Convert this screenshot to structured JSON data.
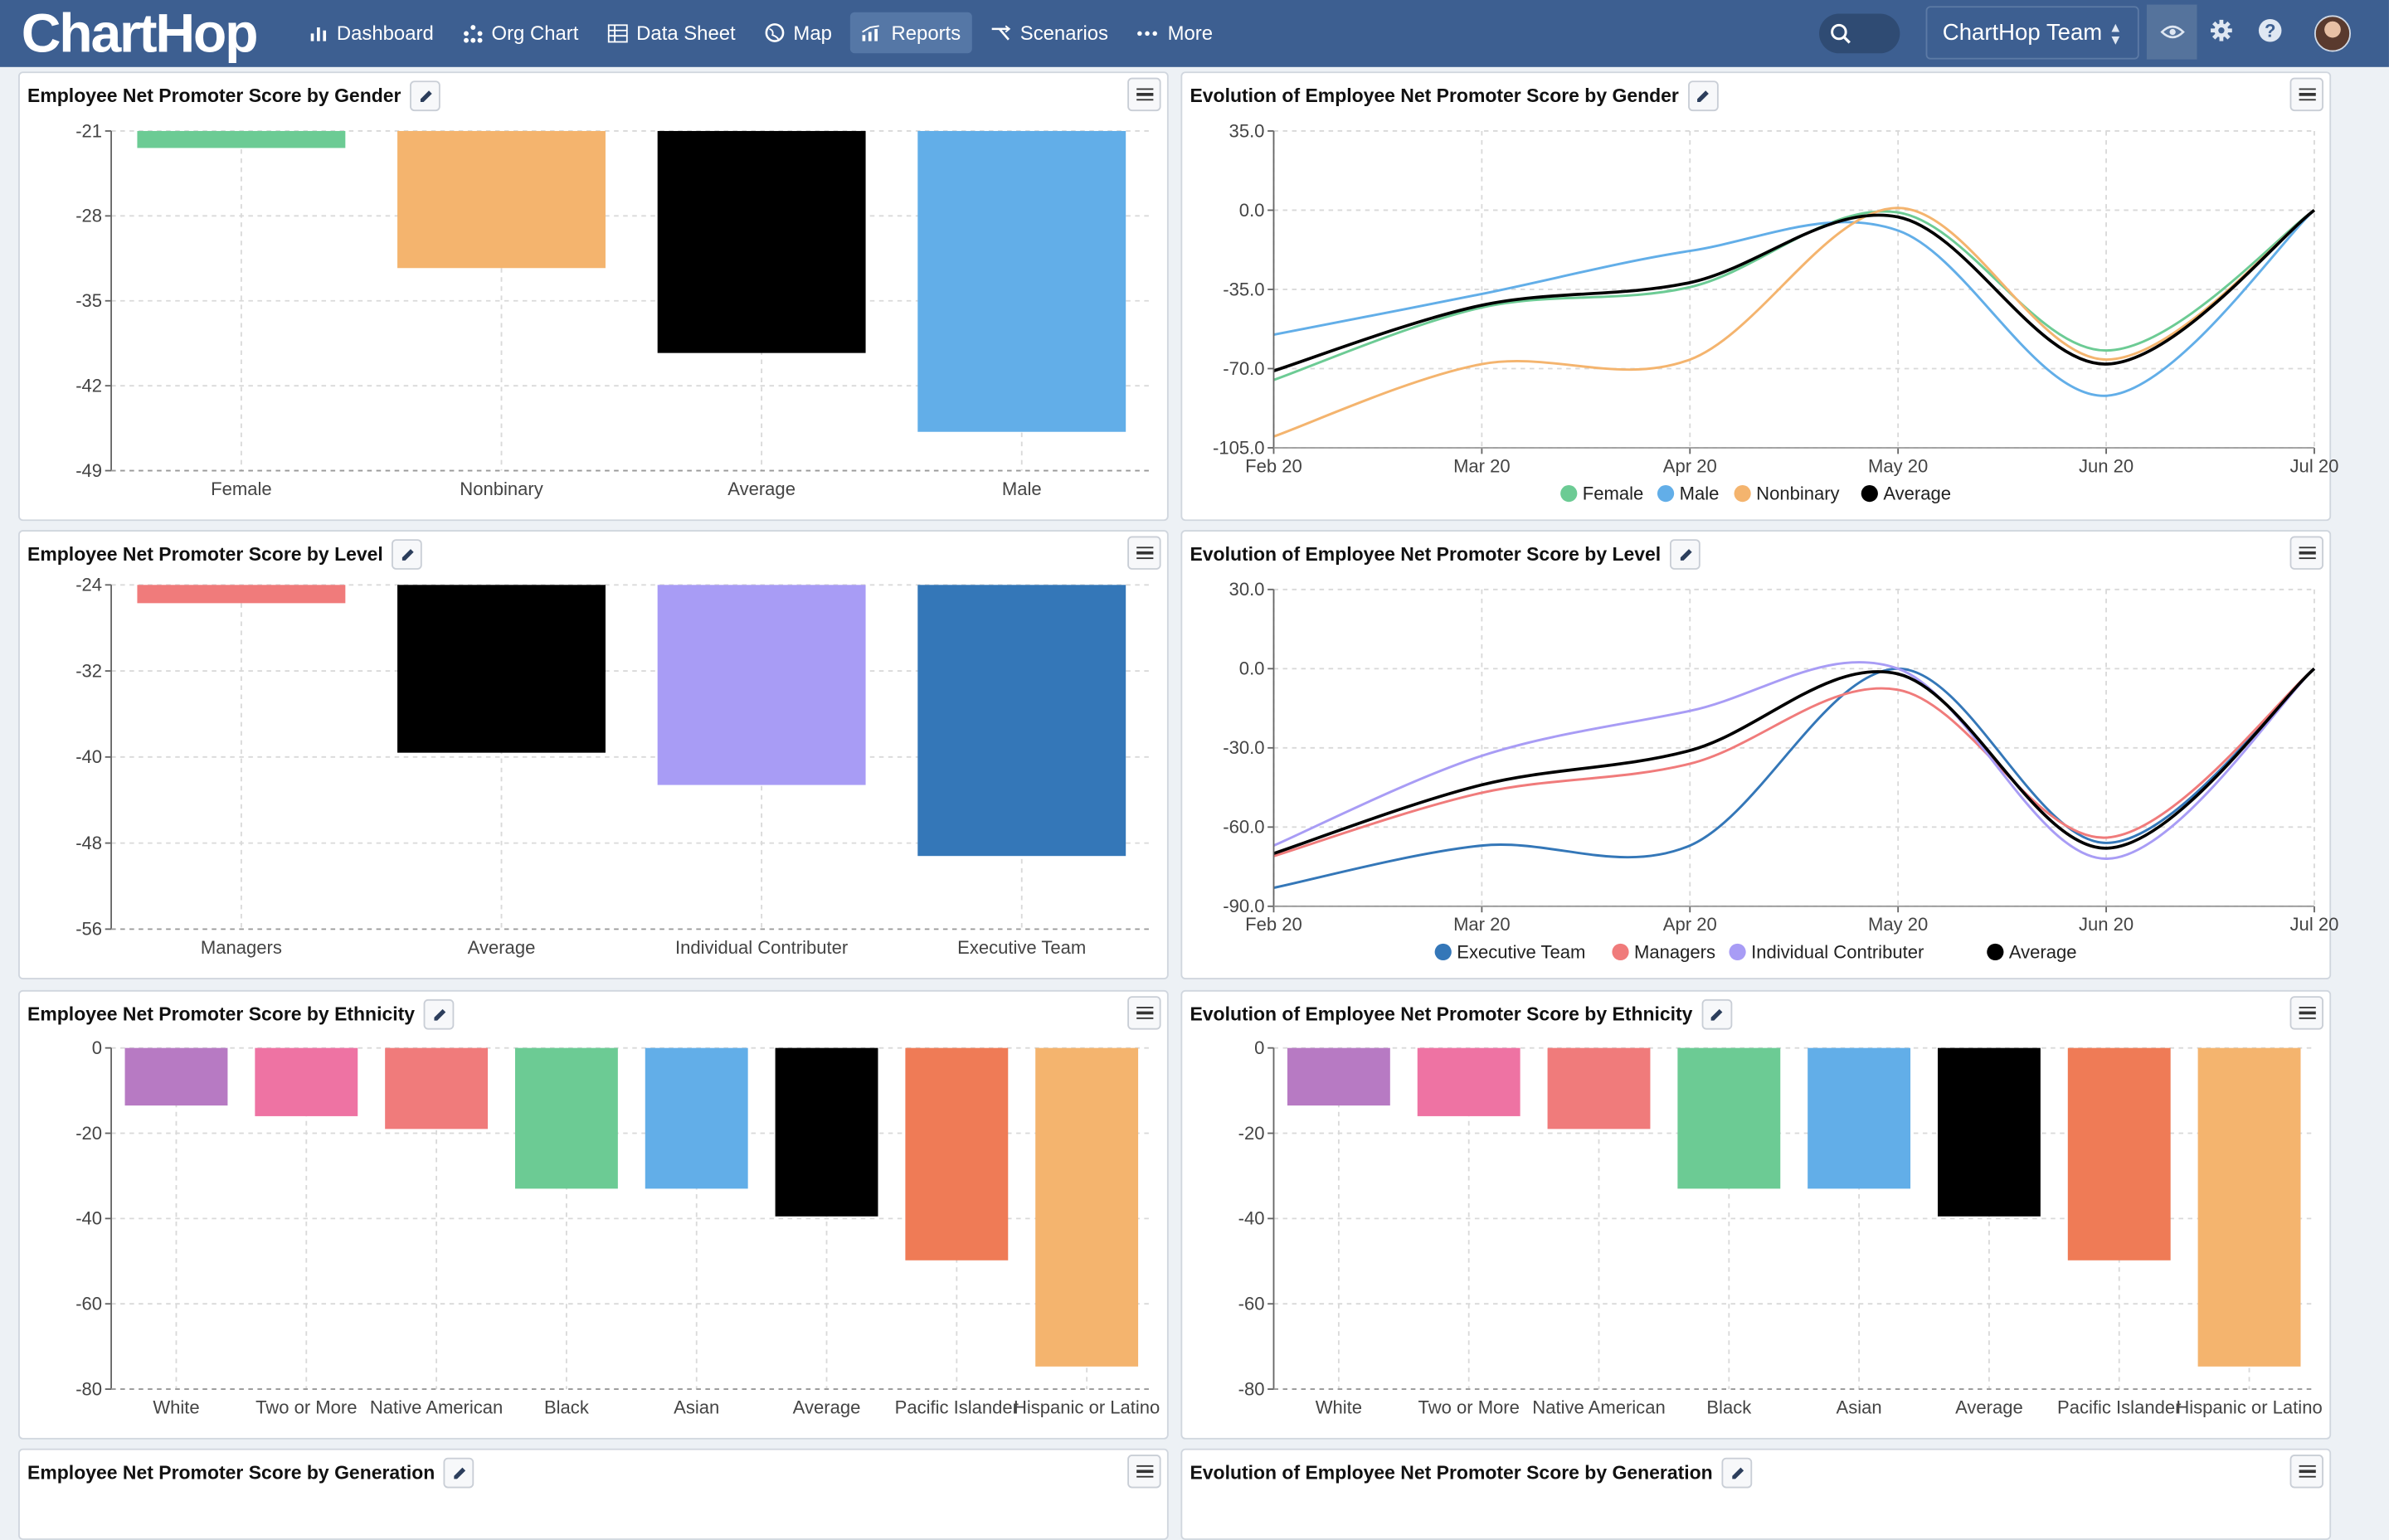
{
  "app": {
    "logo": "ChartHop",
    "nav": [
      {
        "label": "Dashboard",
        "icon": "bar-chart-icon"
      },
      {
        "label": "Org Chart",
        "icon": "org-chart-icon"
      },
      {
        "label": "Data Sheet",
        "icon": "table-icon"
      },
      {
        "label": "Map",
        "icon": "globe-icon"
      },
      {
        "label": "Reports",
        "icon": "reports-icon",
        "active": true
      },
      {
        "label": "Scenarios",
        "icon": "scenarios-icon"
      },
      {
        "label": "More",
        "icon": "ellipsis-icon"
      }
    ],
    "team_selector": "ChartHop Team",
    "colors": {
      "topbar": "#3d5f91",
      "active_nav": "#5577a6"
    }
  },
  "cards": [
    {
      "title": "Employee Net Promoter Score by Gender"
    },
    {
      "title": "Evolution of Employee Net Promoter Score by Gender"
    },
    {
      "title": "Employee Net Promoter Score by Level"
    },
    {
      "title": "Evolution of Employee Net Promoter Score by Level"
    },
    {
      "title": "Employee Net Promoter Score by Ethnicity"
    },
    {
      "title": "Evolution of Employee Net Promoter Score by Ethnicity"
    },
    {
      "title": "Employee Net Promoter Score by Generation"
    },
    {
      "title": "Evolution of Employee Net Promoter Score by Generation"
    }
  ],
  "chart_data": [
    {
      "type": "bar",
      "title": "Employee Net Promoter Score by Gender",
      "categories": [
        "Female",
        "Nonbinary",
        "Average",
        "Male"
      ],
      "values": [
        -22.4,
        -32.3,
        -39.3,
        -45.8
      ],
      "colors": [
        "#6ccb94",
        "#f4b46e",
        "#000000",
        "#62aee8"
      ],
      "yticks": [
        "-21",
        "-28",
        "-35",
        "-42",
        "-49"
      ],
      "ylim": [
        -49,
        -21
      ],
      "grid": true
    },
    {
      "type": "line",
      "title": "Evolution of Employee Net Promoter Score by Gender",
      "x": [
        "Feb 20",
        "Mar 20",
        "Apr 20",
        "May 20",
        "Jun 20",
        "Jul 20"
      ],
      "yticks": [
        "35.0",
        "0.0",
        "-35.0",
        "-70.0",
        "-105.0"
      ],
      "ylim": [
        -105,
        35
      ],
      "legend_position": "bottom",
      "series": [
        {
          "name": "Female",
          "color": "#6ccb94",
          "values": [
            -75,
            -43,
            -34,
            -1,
            -62,
            0
          ]
        },
        {
          "name": "Male",
          "color": "#62aee8",
          "values": [
            -55,
            -37,
            -18,
            -9,
            -82,
            0
          ]
        },
        {
          "name": "Nonbinary",
          "color": "#f4b46e",
          "values": [
            -100,
            -68,
            -66,
            1,
            -66,
            0
          ]
        },
        {
          "name": "Average",
          "color": "#000000",
          "values": [
            -71,
            -42,
            -32,
            -3,
            -68,
            0
          ]
        }
      ]
    },
    {
      "type": "bar",
      "title": "Employee Net Promoter Score by Level",
      "categories": [
        "Managers",
        "Average",
        "Individual Contributer",
        "Executive Team"
      ],
      "values": [
        -25.7,
        -39.6,
        -42.6,
        -49.2
      ],
      "colors": [
        "#f07b7b",
        "#000000",
        "#a89cf5",
        "#3477b8"
      ],
      "yticks": [
        "-24",
        "-32",
        "-40",
        "-48",
        "-56"
      ],
      "ylim": [
        -56,
        -24
      ],
      "grid": true
    },
    {
      "type": "line",
      "title": "Evolution of Employee Net Promoter Score by Level",
      "x": [
        "Feb 20",
        "Mar 20",
        "Apr 20",
        "May 20",
        "Jun 20",
        "Jul 20"
      ],
      "yticks": [
        "30.0",
        "0.0",
        "-30.0",
        "-60.0",
        "-90.0"
      ],
      "ylim": [
        -90,
        30
      ],
      "legend_position": "bottom",
      "series": [
        {
          "name": "Executive Team",
          "color": "#3477b8",
          "values": [
            -83,
            -67,
            -67,
            0,
            -66,
            0
          ]
        },
        {
          "name": "Managers",
          "color": "#f07b7b",
          "values": [
            -71,
            -47,
            -36,
            -8,
            -64,
            0
          ]
        },
        {
          "name": "Individual Contributer",
          "color": "#a89cf5",
          "values": [
            -67,
            -33,
            -16,
            0,
            -72,
            0
          ]
        },
        {
          "name": "Average",
          "color": "#000000",
          "values": [
            -70,
            -44,
            -31,
            -2,
            -68,
            0
          ]
        }
      ]
    },
    {
      "type": "bar",
      "title": "Employee Net Promoter Score by Ethnicity",
      "categories": [
        "White",
        "Two or More",
        "Native American",
        "Black",
        "Asian",
        "Average",
        "Pacific Islander",
        "Hispanic or Latino"
      ],
      "values": [
        -13.5,
        -16,
        -19,
        -33,
        -33,
        -39.5,
        -49.8,
        -74.7
      ],
      "colors": [
        "#b77ac3",
        "#ee73a3",
        "#f07b7b",
        "#6ccb94",
        "#62aee8",
        "#000000",
        "#ef7b56",
        "#f4b46e"
      ],
      "yticks": [
        "0",
        "-20",
        "-40",
        "-60",
        "-80"
      ],
      "ylim": [
        -80,
        0
      ],
      "grid": true
    },
    {
      "type": "bar",
      "title": "Evolution of Employee Net Promoter Score by Ethnicity",
      "categories": [
        "White",
        "Two or More",
        "Native American",
        "Black",
        "Asian",
        "Average",
        "Pacific Islander",
        "Hispanic or Latino"
      ],
      "values": [
        -13.5,
        -16,
        -19,
        -33,
        -33,
        -39.5,
        -49.8,
        -74.7
      ],
      "colors": [
        "#b77ac3",
        "#ee73a3",
        "#f07b7b",
        "#6ccb94",
        "#62aee8",
        "#000000",
        "#ef7b56",
        "#f4b46e"
      ],
      "yticks": [
        "0",
        "-20",
        "-40",
        "-60",
        "-80"
      ],
      "ylim": [
        -80,
        0
      ],
      "grid": true
    }
  ]
}
